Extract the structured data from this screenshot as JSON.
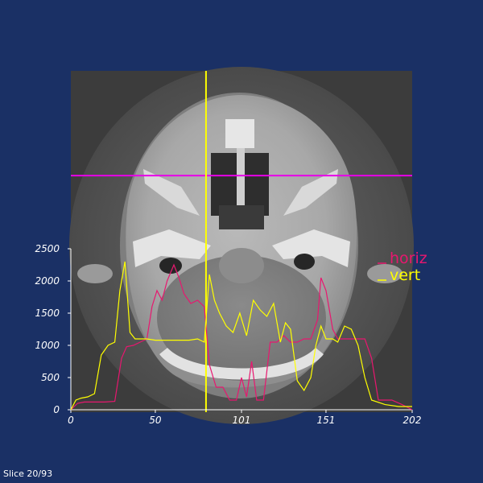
{
  "status": {
    "slice_text": "Slice 20/93"
  },
  "colors": {
    "background": "#1a3065",
    "crosshair_horizontal": "#e800e8",
    "crosshair_vertical": "#ffff00",
    "series_horiz": "#e8176f",
    "series_vert": "#ffff00",
    "axes": "#ffffff"
  },
  "crosshair": {
    "x_voxel": 80,
    "y_voxel": 62
  },
  "chart_data": {
    "type": "line",
    "title": "",
    "xlabel": "",
    "ylabel": "",
    "xlim": [
      0,
      202
    ],
    "ylim": [
      0,
      2500
    ],
    "x_ticks": [
      0,
      50,
      101,
      151,
      202
    ],
    "y_ticks": [
      0,
      500,
      1000,
      1500,
      2000,
      2500
    ],
    "legend_position": "right",
    "series": [
      {
        "name": "horiz",
        "x": [
          0,
          4,
          8,
          14,
          20,
          26,
          30,
          33,
          37,
          41,
          45,
          48,
          51,
          54,
          57,
          61,
          64,
          67,
          71,
          75,
          79,
          82,
          86,
          90,
          94,
          98,
          101,
          104,
          107,
          110,
          114,
          118,
          122,
          126,
          130,
          134,
          138,
          142,
          146,
          148,
          151,
          155,
          158,
          162,
          166,
          170,
          174,
          178,
          182,
          190,
          196,
          202
        ],
        "y": [
          0,
          100,
          120,
          120,
          120,
          130,
          800,
          980,
          1000,
          1050,
          1100,
          1600,
          1850,
          1700,
          2000,
          2250,
          2050,
          1800,
          1650,
          1700,
          1600,
          700,
          350,
          350,
          150,
          150,
          500,
          200,
          750,
          150,
          150,
          1050,
          1050,
          1150,
          1050,
          1050,
          1100,
          1100,
          1400,
          2050,
          1850,
          1250,
          1100,
          1100,
          1100,
          1100,
          1100,
          800,
          150,
          150,
          80,
          0
        ]
      },
      {
        "name": "vert",
        "x": [
          0,
          3,
          6,
          10,
          14,
          18,
          22,
          26,
          29,
          32,
          35,
          38,
          41,
          45,
          50,
          55,
          60,
          65,
          70,
          75,
          79,
          82,
          85,
          88,
          92,
          96,
          100,
          104,
          108,
          112,
          116,
          120,
          124,
          127,
          130,
          134,
          138,
          142,
          145,
          148,
          151,
          155,
          158,
          162,
          166,
          170,
          174,
          178,
          186,
          194,
          202
        ],
        "y": [
          0,
          150,
          180,
          200,
          250,
          850,
          1000,
          1050,
          1850,
          2300,
          1200,
          1100,
          1100,
          1100,
          1080,
          1080,
          1080,
          1080,
          1080,
          1100,
          1050,
          2100,
          1700,
          1500,
          1300,
          1200,
          1500,
          1150,
          1700,
          1550,
          1450,
          1650,
          1050,
          1350,
          1250,
          450,
          300,
          500,
          1000,
          1300,
          1100,
          1100,
          1050,
          1300,
          1250,
          1000,
          500,
          150,
          80,
          50,
          50
        ]
      }
    ]
  }
}
